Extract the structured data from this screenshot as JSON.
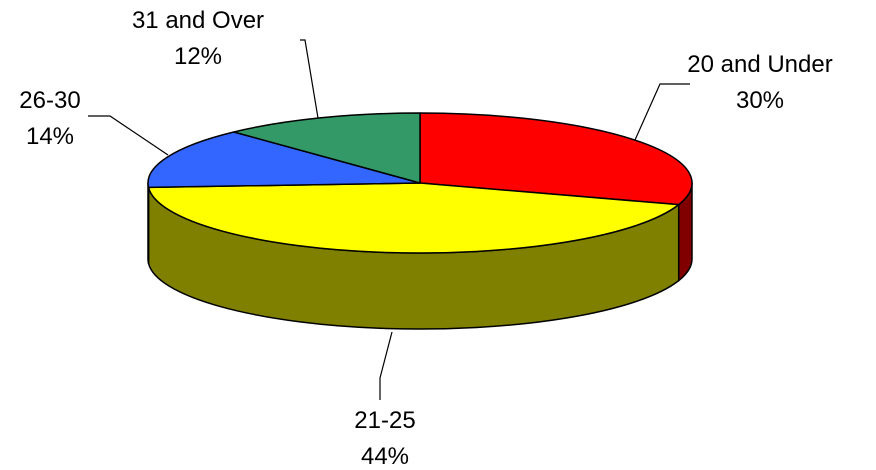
{
  "chart_data": {
    "type": "pie",
    "style": "3d",
    "slices": [
      {
        "label": "20 and Under",
        "pct_label": "30%",
        "value": 30,
        "color": "#FF0000",
        "side_color": "#800000"
      },
      {
        "label": "21-25",
        "pct_label": "44%",
        "value": 44,
        "color": "#FFFF00",
        "side_color": "#808000"
      },
      {
        "label": "26-30",
        "pct_label": "14%",
        "value": 14,
        "color": "#3366FF",
        "side_color": "#1A3380"
      },
      {
        "label": "31 and Over",
        "pct_label": "12%",
        "value": 12,
        "color": "#339966",
        "side_color": "#1A4D33"
      }
    ]
  }
}
